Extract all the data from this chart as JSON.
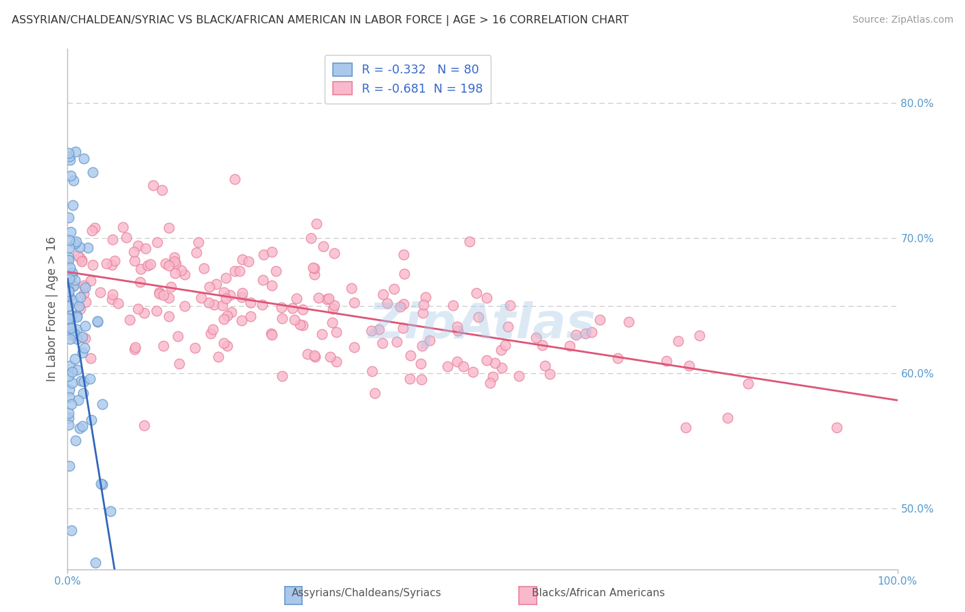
{
  "title": "ASSYRIAN/CHALDEAN/SYRIAC VS BLACK/AFRICAN AMERICAN IN LABOR FORCE | AGE > 16 CORRELATION CHART",
  "source": "Source: ZipAtlas.com",
  "ylabel": "In Labor Force | Age > 16",
  "right_yticks": [
    "50.0%",
    "60.0%",
    "70.0%",
    "80.0%"
  ],
  "right_ytick_vals": [
    0.5,
    0.6,
    0.7,
    0.8
  ],
  "legend_entries": [
    {
      "label": "Assyrians/Chaldeans/Syriacs",
      "R": -0.332,
      "N": 80,
      "face_color": "#aac8ec",
      "edge_color": "#6699cc"
    },
    {
      "label": "Blacks/African Americans",
      "R": -0.681,
      "N": 198,
      "face_color": "#f9b8cc",
      "edge_color": "#e8829a"
    }
  ],
  "background_color": "#ffffff",
  "grid_color": "#cccccc",
  "title_color": "#333333",
  "watermark_text": "ZipAtlas",
  "watermark_color": "#a8c8e8",
  "blue_line_color": "#3366bb",
  "pink_line_color": "#dd5577",
  "ytick_color": "#5599cc",
  "xtick_color": "#5599cc"
}
